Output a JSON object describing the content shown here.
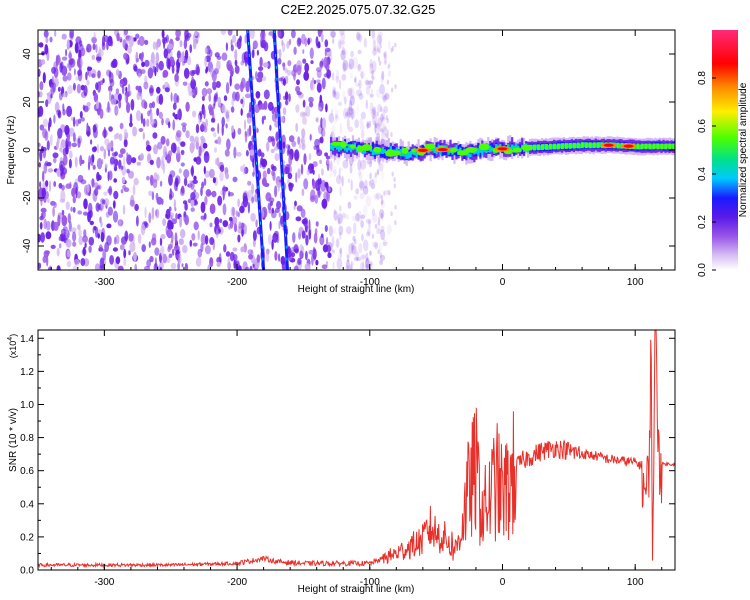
{
  "figure": {
    "title": "C2E2.2025.075.07.32.G25"
  },
  "colors": {
    "snr_line": "#e8302a",
    "colormap": [
      "#ffffff",
      "#ccaaf0",
      "#9955e8",
      "#6a1ee8",
      "#1a1aff",
      "#00c8ff",
      "#00e08a",
      "#4cff00",
      "#ffee00",
      "#ff8c00",
      "#ff0000",
      "#ff2a7a"
    ]
  },
  "chart_data": [
    {
      "type": "heatmap",
      "title": "C2E2.2025.075.07.32.G25",
      "xlabel": "Height of straight line (km)",
      "ylabel": "Frequency (Hz)",
      "xlim": [
        -350,
        130
      ],
      "ylim": [
        -50,
        50
      ],
      "x_ticks": [
        -300,
        -200,
        -100,
        0,
        100
      ],
      "x_tick_labels": [
        "-300",
        "-200",
        "-100",
        "0",
        "100"
      ],
      "y_ticks": [
        -40,
        -20,
        0,
        20,
        40
      ],
      "y_tick_labels": [
        "-40",
        "-20",
        "0",
        "20",
        "40"
      ],
      "colorbar": {
        "label": "Normalized spectral amplitude",
        "range": [
          0,
          1
        ],
        "ticks": [
          0.0,
          0.2,
          0.4,
          0.6,
          0.8
        ],
        "tick_labels": [
          "0.0",
          "0.2",
          "0.4",
          "0.6",
          "0.8"
        ]
      },
      "features": {
        "noise_region_x": [
          -350,
          -105
        ],
        "main_ridge": {
          "x": [
            -130,
            -110,
            -90,
            -70,
            -55,
            -40,
            -25,
            -10,
            0,
            20,
            40,
            60,
            80,
            100,
            120,
            130
          ],
          "y": [
            1.5,
            1.0,
            -0.5,
            -1.5,
            0.5,
            0.0,
            -1.0,
            0.5,
            0.5,
            1.0,
            1.5,
            2.0,
            2.0,
            1.5,
            1.5,
            1.5
          ],
          "peak_amplitude_x": [
            -60,
            -45,
            0,
            80,
            95
          ]
        },
        "diagonal_streaks": [
          {
            "x": [
              -192,
              -180
            ],
            "y": [
              50,
              -50
            ]
          },
          {
            "x": [
              -172,
              -162
            ],
            "y": [
              50,
              -50
            ]
          }
        ]
      }
    },
    {
      "type": "line",
      "xlabel": "Height of straight line (km)",
      "ylabel": "SNR (10 * v/v)",
      "y_multiplier_label": "(x10",
      "y_multiplier_exp": "4",
      "xlim": [
        -350,
        130
      ],
      "ylim": [
        0,
        1.45
      ],
      "x_ticks": [
        -300,
        -200,
        -100,
        0,
        100
      ],
      "x_tick_labels": [
        "-300",
        "-200",
        "-100",
        "0",
        "100"
      ],
      "y_ticks": [
        0.0,
        0.2,
        0.4,
        0.6,
        0.8,
        1.0,
        1.2,
        1.4
      ],
      "y_tick_labels": [
        "0.0",
        "0.2",
        "0.4",
        "0.6",
        "0.8",
        "1.0",
        "1.2",
        "1.4"
      ],
      "series": [
        {
          "x": [
            -350,
            -300,
            -250,
            -200,
            -180,
            -170,
            -150,
            -120,
            -100,
            -90,
            -80,
            -70,
            -60,
            -55,
            -50,
            -45,
            -40,
            -35,
            -30,
            -25,
            -20,
            -15,
            -10,
            -5,
            0,
            5,
            10,
            15,
            20,
            30,
            40,
            50,
            60,
            70,
            80,
            90,
            100,
            105,
            108,
            110,
            112,
            113,
            115,
            118,
            120,
            125,
            130
          ],
          "y": [
            0.03,
            0.03,
            0.03,
            0.04,
            0.07,
            0.05,
            0.04,
            0.04,
            0.04,
            0.07,
            0.1,
            0.14,
            0.18,
            0.26,
            0.22,
            0.2,
            0.17,
            0.12,
            0.3,
            0.5,
            0.6,
            0.35,
            0.42,
            0.55,
            0.45,
            0.5,
            0.62,
            0.66,
            0.68,
            0.72,
            0.74,
            0.72,
            0.7,
            0.69,
            0.67,
            0.66,
            0.65,
            0.63,
            0.42,
            0.55,
            1.3,
            0.1,
            1.45,
            0.7,
            0.64,
            0.64,
            0.64
          ]
        }
      ]
    }
  ]
}
